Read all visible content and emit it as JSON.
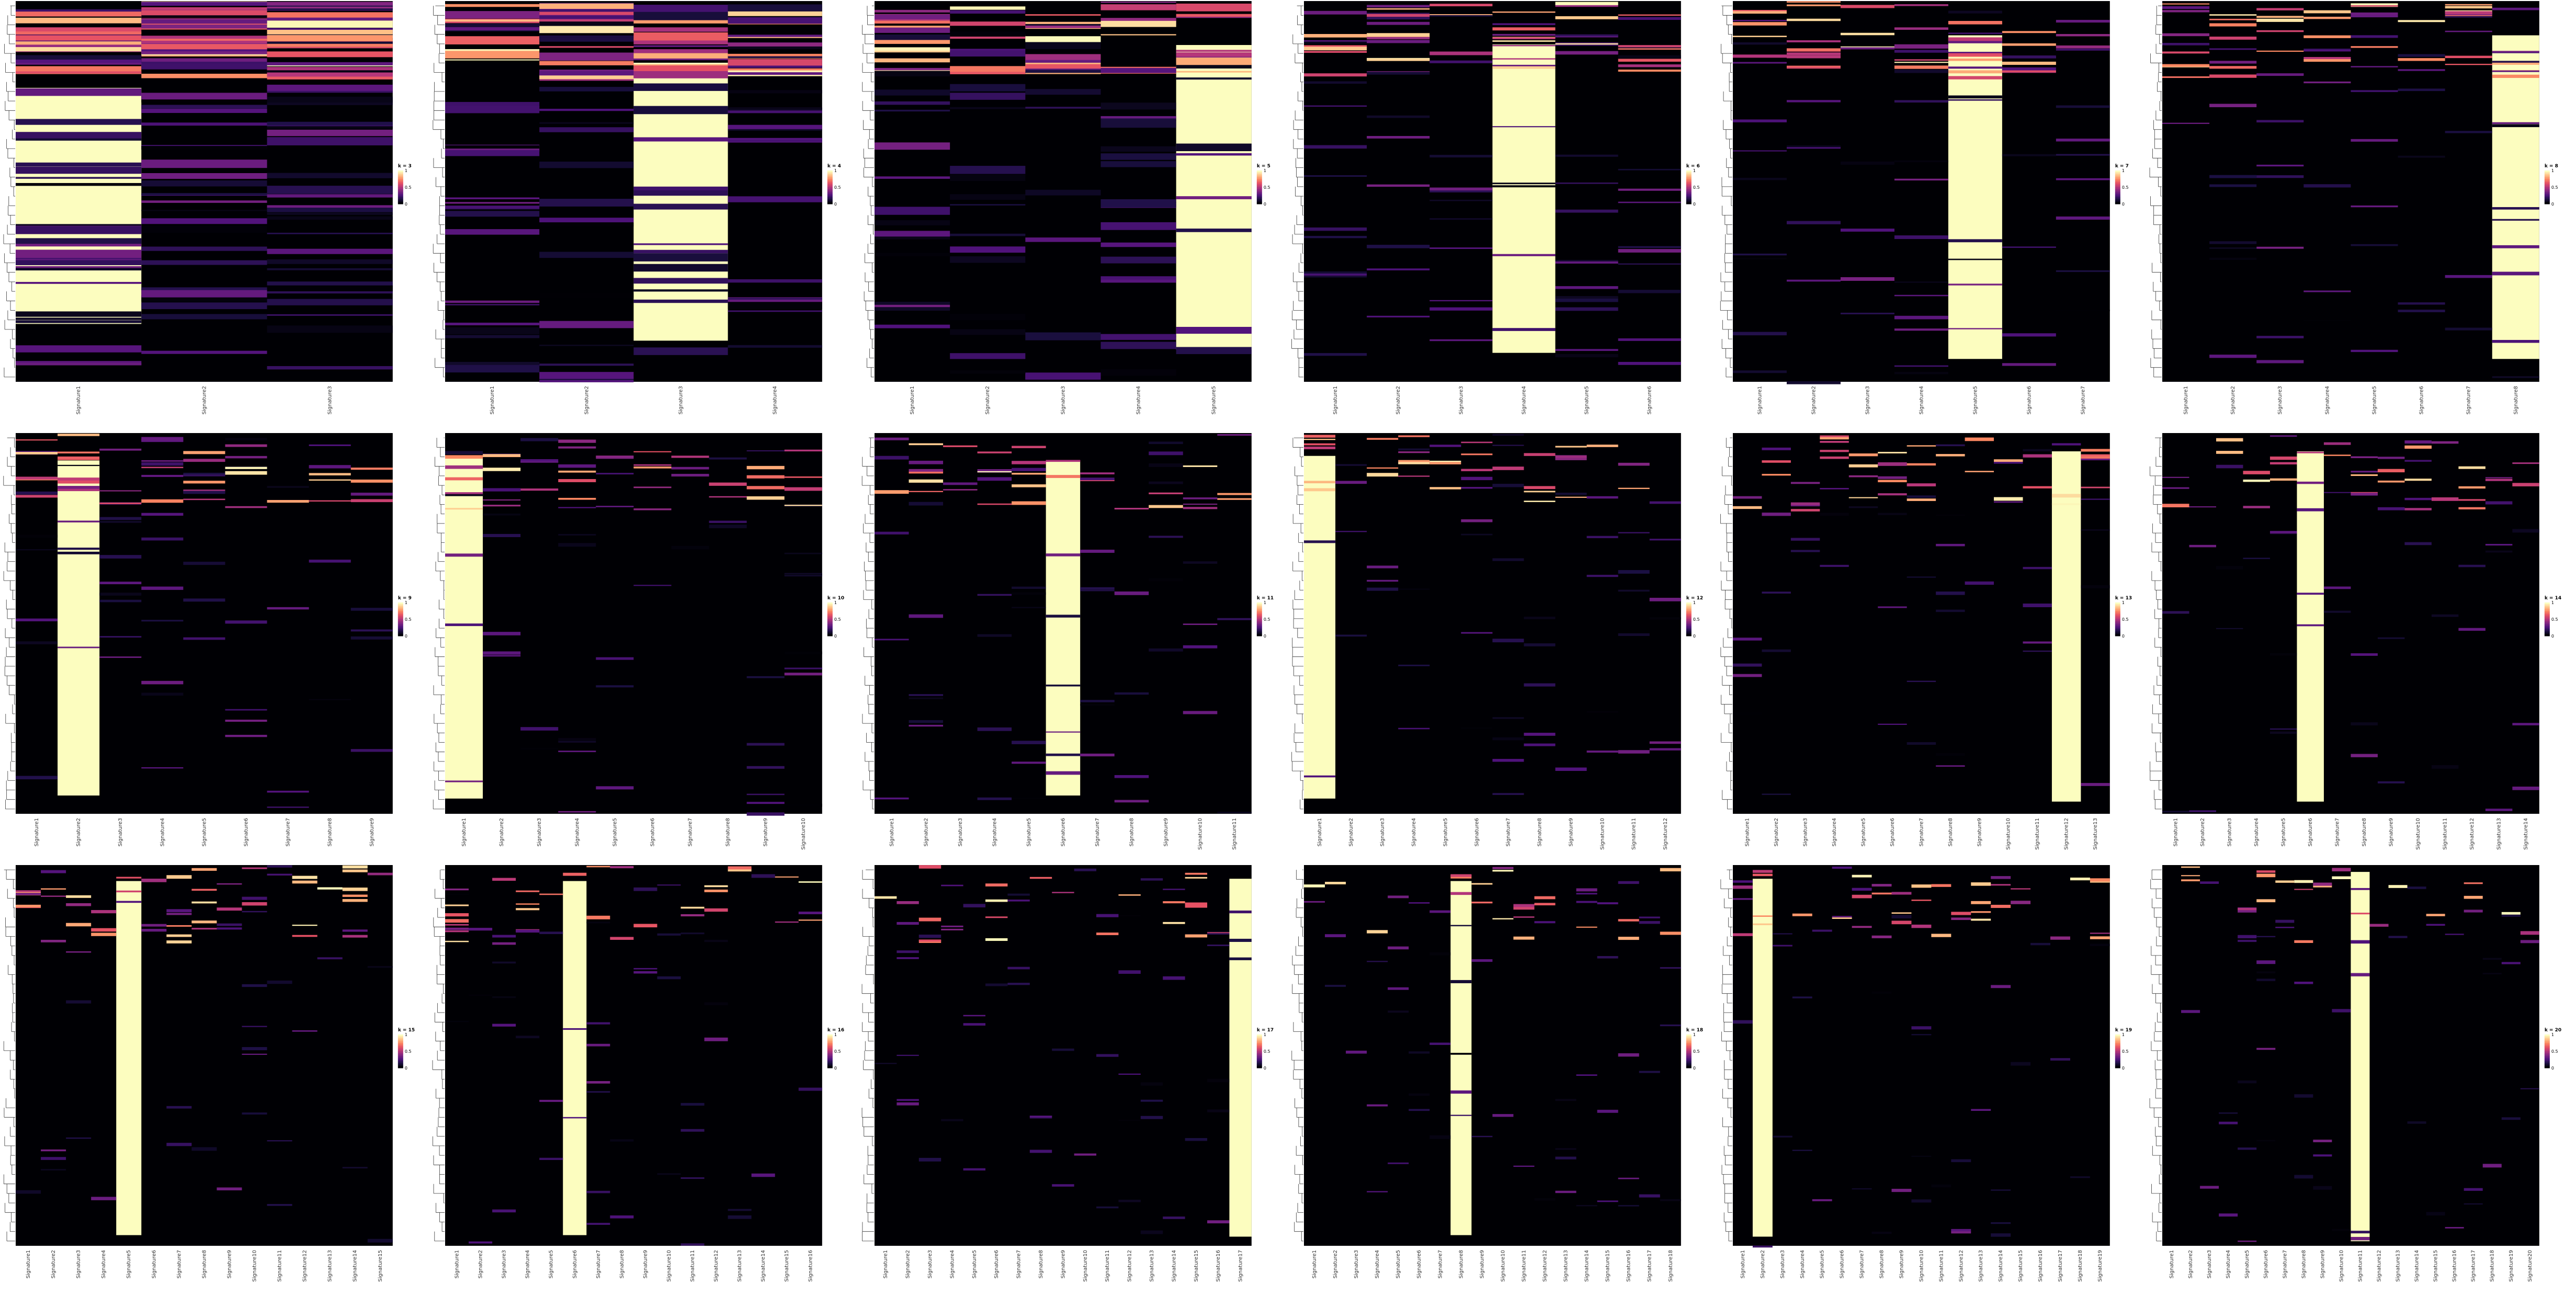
{
  "colors": {
    "palette": [
      "#000004",
      "#1c1044",
      "#4f127b",
      "#812581",
      "#b5367a",
      "#e55064",
      "#fb8761",
      "#fec287",
      "#fcfdbf"
    ],
    "background": "#ffffff",
    "dendrogram": "#333333",
    "tick_label": "#333333"
  },
  "colorbar": {
    "ticks": [
      "1",
      "0.5",
      "0"
    ],
    "tick_values": [
      1,
      0.5,
      0
    ]
  },
  "chart_data": [
    {
      "type": "heatmap",
      "legend_title": "k = 3",
      "k": 3,
      "columns": [
        "Signature1",
        "Signature2",
        "Signature3"
      ],
      "scale": [
        0,
        1
      ],
      "dominant_column": 1,
      "dominant_fraction": 0.62
    },
    {
      "type": "heatmap",
      "legend_title": "k = 4",
      "k": 4,
      "columns": [
        "Signature1",
        "Signature2",
        "Signature3",
        "Signature4"
      ],
      "scale": [
        0,
        1
      ],
      "dominant_column": 3,
      "dominant_fraction": 0.73
    },
    {
      "type": "heatmap",
      "legend_title": "k = 5",
      "k": 5,
      "columns": [
        "Signature1",
        "Signature2",
        "Signature3",
        "Signature4",
        "Signature5"
      ],
      "scale": [
        0,
        1
      ],
      "dominant_column": 5,
      "dominant_fraction": 0.79
    },
    {
      "type": "heatmap",
      "legend_title": "k = 6",
      "k": 6,
      "columns": [
        "Signature1",
        "Signature2",
        "Signature3",
        "Signature4",
        "Signature5",
        "Signature6"
      ],
      "scale": [
        0,
        1
      ],
      "dominant_column": 4,
      "dominant_fraction": 0.81
    },
    {
      "type": "heatmap",
      "legend_title": "k = 7",
      "k": 7,
      "columns": [
        "Signature1",
        "Signature2",
        "Signature3",
        "Signature4",
        "Signature5",
        "Signature6",
        "Signature7"
      ],
      "scale": [
        0,
        1
      ],
      "dominant_column": 5,
      "dominant_fraction": 0.85
    },
    {
      "type": "heatmap",
      "legend_title": "k = 8",
      "k": 8,
      "columns": [
        "Signature1",
        "Signature2",
        "Signature3",
        "Signature4",
        "Signature5",
        "Signature6",
        "Signature7",
        "Signature8"
      ],
      "scale": [
        0,
        1
      ],
      "dominant_column": 8,
      "dominant_fraction": 0.85
    },
    {
      "type": "heatmap",
      "legend_title": "k = 9",
      "k": 9,
      "columns": [
        "Signature1",
        "Signature2",
        "Signature3",
        "Signature4",
        "Signature5",
        "Signature6",
        "Signature7",
        "Signature8",
        "Signature9"
      ],
      "scale": [
        0,
        1
      ],
      "dominant_column": 2,
      "dominant_fraction": 0.88
    },
    {
      "type": "heatmap",
      "legend_title": "k = 10",
      "k": 10,
      "columns": [
        "Signature1",
        "Signature2",
        "Signature3",
        "Signature4",
        "Signature5",
        "Signature6",
        "Signature7",
        "Signature8",
        "Signature9",
        "Signature10"
      ],
      "scale": [
        0,
        1
      ],
      "dominant_column": 1,
      "dominant_fraction": 0.9
    },
    {
      "type": "heatmap",
      "legend_title": "k = 11",
      "k": 11,
      "columns": [
        "Signature1",
        "Signature2",
        "Signature3",
        "Signature4",
        "Signature5",
        "Signature6",
        "Signature7",
        "Signature8",
        "Signature9",
        "Signature10",
        "Signature11"
      ],
      "scale": [
        0,
        1
      ],
      "dominant_column": 6,
      "dominant_fraction": 0.88
    },
    {
      "type": "heatmap",
      "legend_title": "k = 12",
      "k": 12,
      "columns": [
        "Signature1",
        "Signature2",
        "Signature3",
        "Signature4",
        "Signature5",
        "Signature6",
        "Signature7",
        "Signature8",
        "Signature9",
        "Signature10",
        "Signature11",
        "Signature12"
      ],
      "scale": [
        0,
        1
      ],
      "dominant_column": 1,
      "dominant_fraction": 0.9
    },
    {
      "type": "heatmap",
      "legend_title": "k = 13",
      "k": 13,
      "columns": [
        "Signature1",
        "Signature2",
        "Signature3",
        "Signature4",
        "Signature5",
        "Signature6",
        "Signature7",
        "Signature8",
        "Signature9",
        "Signature10",
        "Signature11",
        "Signature12",
        "Signature13"
      ],
      "scale": [
        0,
        1
      ],
      "dominant_column": 12,
      "dominant_fraction": 0.92
    },
    {
      "type": "heatmap",
      "legend_title": "k = 14",
      "k": 14,
      "columns": [
        "Signature1",
        "Signature2",
        "Signature3",
        "Signature4",
        "Signature5",
        "Signature6",
        "Signature7",
        "Signature8",
        "Signature9",
        "Signature10",
        "Signature11",
        "Signature12",
        "Signature13",
        "Signature14"
      ],
      "scale": [
        0,
        1
      ],
      "dominant_column": 6,
      "dominant_fraction": 0.92
    },
    {
      "type": "heatmap",
      "legend_title": "k = 15",
      "k": 15,
      "columns": [
        "Signature1",
        "Signature2",
        "Signature3",
        "Signature4",
        "Signature5",
        "Signature6",
        "Signature7",
        "Signature8",
        "Signature9",
        "Signature10",
        "Signature11",
        "Signature12",
        "Signature13",
        "Signature14",
        "Signature15"
      ],
      "scale": [
        0,
        1
      ],
      "dominant_column": 5,
      "dominant_fraction": 0.93
    },
    {
      "type": "heatmap",
      "legend_title": "k = 16",
      "k": 16,
      "columns": [
        "Signature1",
        "Signature2",
        "Signature3",
        "Signature4",
        "Signature5",
        "Signature6",
        "Signature7",
        "Signature8",
        "Signature9",
        "Signature10",
        "Signature11",
        "Signature12",
        "Signature13",
        "Signature14",
        "Signature15",
        "Signature16"
      ],
      "scale": [
        0,
        1
      ],
      "dominant_column": 6,
      "dominant_fraction": 0.93
    },
    {
      "type": "heatmap",
      "legend_title": "k = 17",
      "k": 17,
      "columns": [
        "Signature1",
        "Signature2",
        "Signature3",
        "Signature4",
        "Signature5",
        "Signature6",
        "Signature7",
        "Signature8",
        "Signature9",
        "Signature10",
        "Signature11",
        "Signature12",
        "Signature13",
        "Signature14",
        "Signature15",
        "Signature16",
        "Signature17"
      ],
      "scale": [
        0,
        1
      ],
      "dominant_column": 17,
      "dominant_fraction": 0.94
    },
    {
      "type": "heatmap",
      "legend_title": "k = 18",
      "k": 18,
      "columns": [
        "Signature1",
        "Signature2",
        "Signature3",
        "Signature4",
        "Signature5",
        "Signature6",
        "Signature7",
        "Signature8",
        "Signature9",
        "Signature10",
        "Signature11",
        "Signature12",
        "Signature13",
        "Signature14",
        "Signature15",
        "Signature16",
        "Signature17",
        "Signature18"
      ],
      "scale": [
        0,
        1
      ],
      "dominant_column": 8,
      "dominant_fraction": 0.93
    },
    {
      "type": "heatmap",
      "legend_title": "k = 19",
      "k": 19,
      "columns": [
        "Signature1",
        "Signature2",
        "Signature3",
        "Signature4",
        "Signature5",
        "Signature6",
        "Signature7",
        "Signature8",
        "Signature9",
        "Signature10",
        "Signature11",
        "Signature12",
        "Signature13",
        "Signature14",
        "Signature15",
        "Signature16",
        "Signature17",
        "Signature18",
        "Signature19"
      ],
      "scale": [
        0,
        1
      ],
      "dominant_column": 2,
      "dominant_fraction": 0.94
    },
    {
      "type": "heatmap",
      "legend_title": "k = 20",
      "k": 20,
      "columns": [
        "Signature1",
        "Signature2",
        "Signature3",
        "Signature4",
        "Signature5",
        "Signature6",
        "Signature7",
        "Signature8",
        "Signature9",
        "Signature10",
        "Signature11",
        "Signature12",
        "Signature13",
        "Signature14",
        "Signature15",
        "Signature16",
        "Signature17",
        "Signature18",
        "Signature19",
        "Signature20"
      ],
      "scale": [
        0,
        1
      ],
      "dominant_column": 11,
      "dominant_fraction": 0.97
    }
  ]
}
